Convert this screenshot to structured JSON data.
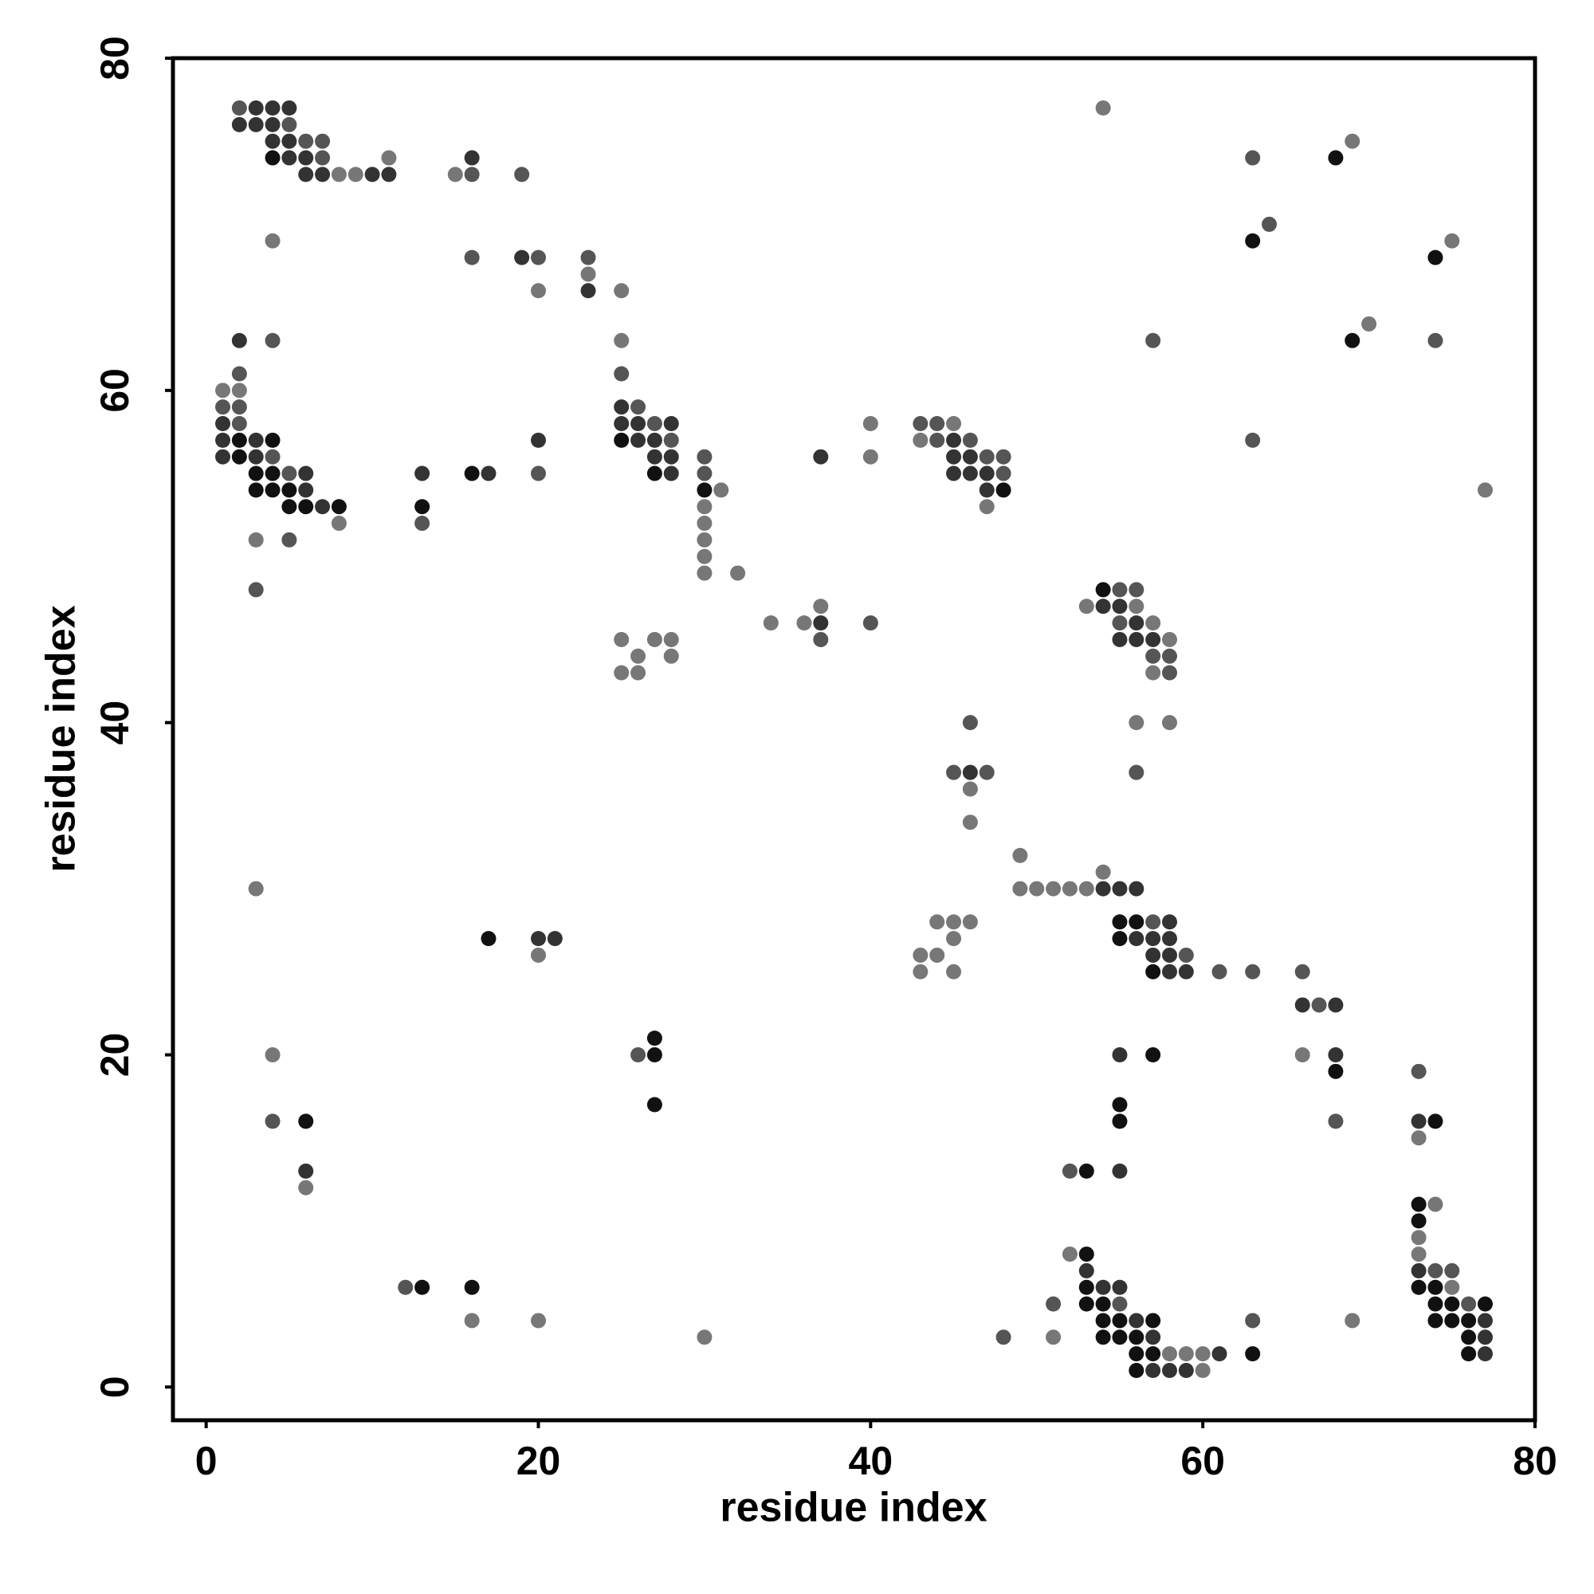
{
  "chart_data": {
    "type": "scatter",
    "x_label": "residue index",
    "y_label": "residue index",
    "xlim": [
      -2,
      80
    ],
    "ylim": [
      -2,
      80
    ],
    "xticks": [
      0,
      20,
      40,
      60,
      80
    ],
    "yticks": [
      0,
      20,
      40,
      60,
      80
    ],
    "series": [
      {
        "color": "#111111",
        "x": [
          4,
          68,
          63,
          74,
          69,
          2,
          4,
          25,
          2,
          3,
          4,
          16,
          27,
          3,
          4,
          5,
          30,
          48,
          5,
          6,
          8,
          13,
          54,
          55,
          56,
          17,
          55,
          57,
          27,
          27,
          57,
          68,
          27,
          55,
          6,
          55,
          74,
          53,
          73,
          73,
          53,
          13,
          16,
          53,
          73,
          74,
          53,
          54,
          74,
          75,
          77,
          54,
          55,
          57,
          74,
          75,
          76,
          54,
          55,
          56,
          76,
          56,
          57,
          63,
          76,
          56
        ],
        "values": [
          74,
          74,
          69,
          68,
          63,
          57,
          57,
          57,
          56,
          55,
          55,
          55,
          55,
          54,
          54,
          54,
          54,
          54,
          53,
          53,
          53,
          53,
          48,
          28,
          28,
          27,
          27,
          25,
          21,
          20,
          20,
          19,
          17,
          17,
          16,
          16,
          16,
          13,
          11,
          10,
          8,
          6,
          6,
          6,
          6,
          6,
          5,
          5,
          5,
          5,
          5,
          4,
          4,
          4,
          4,
          4,
          4,
          3,
          3,
          3,
          3,
          2,
          2,
          2,
          2,
          1
        ]
      },
      {
        "color": "#333333",
        "x": [
          3,
          4,
          5,
          2,
          3,
          4,
          4,
          5,
          5,
          6,
          16,
          6,
          7,
          10,
          11,
          19,
          23,
          2,
          25,
          1,
          25,
          26,
          28,
          1,
          3,
          20,
          26,
          27,
          45,
          1,
          3,
          27,
          28,
          37,
          45,
          46,
          6,
          13,
          17,
          28,
          45,
          46,
          47,
          6,
          47,
          7,
          54,
          55,
          37,
          56,
          55,
          56,
          57,
          46,
          54,
          55,
          56,
          58,
          20,
          21,
          56,
          57,
          58,
          57,
          58,
          58,
          59,
          66,
          68,
          55,
          68,
          73,
          6,
          55,
          53,
          73,
          54,
          55,
          56,
          77,
          57,
          77,
          61,
          77,
          57,
          58,
          59
        ],
        "values": [
          77,
          77,
          77,
          76,
          76,
          76,
          75,
          75,
          74,
          74,
          74,
          73,
          73,
          73,
          73,
          68,
          66,
          63,
          59,
          58,
          58,
          58,
          58,
          57,
          57,
          57,
          57,
          57,
          57,
          56,
          56,
          56,
          56,
          56,
          56,
          56,
          55,
          55,
          55,
          55,
          55,
          55,
          55,
          54,
          54,
          53,
          47,
          47,
          46,
          46,
          45,
          45,
          45,
          37,
          30,
          30,
          30,
          28,
          27,
          27,
          27,
          27,
          27,
          26,
          26,
          25,
          25,
          23,
          23,
          20,
          20,
          16,
          13,
          13,
          7,
          7,
          6,
          6,
          4,
          4,
          3,
          3,
          2,
          2,
          1,
          1,
          1
        ]
      },
      {
        "color": "#555555",
        "x": [
          2,
          5,
          6,
          7,
          7,
          63,
          16,
          19,
          64,
          16,
          20,
          23,
          4,
          57,
          74,
          2,
          25,
          1,
          2,
          26,
          2,
          27,
          43,
          44,
          28,
          44,
          46,
          63,
          4,
          30,
          47,
          48,
          5,
          20,
          30,
          48,
          13,
          5,
          3,
          55,
          56,
          40,
          55,
          37,
          57,
          58,
          58,
          46,
          45,
          47,
          56,
          57,
          59,
          61,
          63,
          66,
          67,
          26,
          73,
          4,
          68,
          52,
          74,
          75,
          12,
          51,
          55,
          76,
          63,
          48
        ],
        "values": [
          77,
          76,
          75,
          75,
          74,
          74,
          73,
          73,
          70,
          68,
          68,
          68,
          63,
          63,
          63,
          61,
          61,
          59,
          59,
          59,
          58,
          58,
          58,
          58,
          57,
          57,
          57,
          57,
          56,
          56,
          56,
          56,
          55,
          55,
          55,
          55,
          52,
          51,
          48,
          48,
          48,
          46,
          46,
          45,
          44,
          44,
          43,
          40,
          37,
          37,
          37,
          28,
          26,
          25,
          25,
          25,
          23,
          20,
          19,
          16,
          16,
          13,
          7,
          7,
          6,
          5,
          5,
          5,
          4,
          3
        ]
      },
      {
        "color": "#777777",
        "x": [
          54,
          69,
          11,
          8,
          9,
          15,
          4,
          75,
          23,
          20,
          25,
          70,
          25,
          1,
          2,
          40,
          45,
          43,
          40,
          31,
          77,
          30,
          47,
          8,
          30,
          3,
          30,
          30,
          30,
          32,
          37,
          53,
          56,
          34,
          36,
          57,
          25,
          27,
          28,
          58,
          26,
          28,
          25,
          26,
          57,
          56,
          58,
          46,
          46,
          49,
          54,
          3,
          49,
          50,
          51,
          52,
          53,
          44,
          45,
          46,
          45,
          20,
          43,
          44,
          43,
          45,
          4,
          66,
          73,
          6,
          74,
          73,
          52,
          73,
          75,
          16,
          20,
          69,
          30,
          51,
          58,
          59,
          60,
          60
        ],
        "values": [
          77,
          75,
          74,
          73,
          73,
          73,
          69,
          69,
          67,
          66,
          66,
          64,
          63,
          60,
          60,
          58,
          58,
          57,
          56,
          54,
          54,
          53,
          53,
          52,
          52,
          51,
          51,
          50,
          49,
          49,
          47,
          47,
          47,
          46,
          46,
          46,
          45,
          45,
          45,
          45,
          44,
          44,
          43,
          43,
          43,
          40,
          40,
          36,
          34,
          32,
          31,
          30,
          30,
          30,
          30,
          30,
          30,
          28,
          28,
          28,
          27,
          26,
          26,
          26,
          25,
          25,
          20,
          20,
          15,
          12,
          11,
          9,
          8,
          8,
          6,
          4,
          4,
          4,
          3,
          3,
          2,
          2,
          2,
          1
        ]
      }
    ]
  }
}
